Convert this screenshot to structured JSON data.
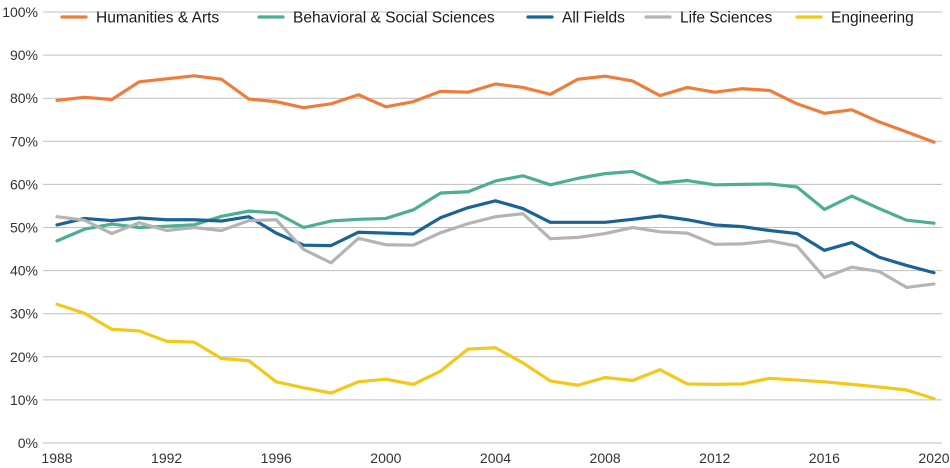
{
  "chart_data": {
    "type": "line",
    "title": "",
    "xlabel": "",
    "ylabel": "",
    "ylim": [
      0,
      100
    ],
    "xlim": [
      1988,
      2020
    ],
    "y_ticks": [
      {
        "value": 0,
        "label": "0%"
      },
      {
        "value": 10,
        "label": "10%"
      },
      {
        "value": 20,
        "label": "20%"
      },
      {
        "value": 30,
        "label": "30%"
      },
      {
        "value": 40,
        "label": "40%"
      },
      {
        "value": 50,
        "label": "50%"
      },
      {
        "value": 60,
        "label": "60%"
      },
      {
        "value": 70,
        "label": "70%"
      },
      {
        "value": 80,
        "label": "80%"
      },
      {
        "value": 90,
        "label": "90%"
      },
      {
        "value": 100,
        "label": "100%"
      }
    ],
    "x_ticks": [
      {
        "value": 1988,
        "label": "1988"
      },
      {
        "value": 1992,
        "label": "1992"
      },
      {
        "value": 1996,
        "label": "1996"
      },
      {
        "value": 2000,
        "label": "2000"
      },
      {
        "value": 2004,
        "label": "2004"
      },
      {
        "value": 2008,
        "label": "2008"
      },
      {
        "value": 2012,
        "label": "2012"
      },
      {
        "value": 2016,
        "label": "2016"
      },
      {
        "value": 2020,
        "label": "2020"
      }
    ],
    "legend_position": "top",
    "x": [
      1988,
      1989,
      1990,
      1991,
      1992,
      1993,
      1994,
      1995,
      1996,
      1997,
      1998,
      1999,
      2000,
      2001,
      2002,
      2003,
      2004,
      2005,
      2006,
      2007,
      2008,
      2009,
      2010,
      2011,
      2012,
      2013,
      2014,
      2015,
      2016,
      2017,
      2018,
      2019,
      2020
    ],
    "series": [
      {
        "name": "Humanities & Arts",
        "color": "#ee7d3b",
        "values": [
          79.5,
          80.2,
          79.7,
          83.8,
          84.5,
          85.2,
          84.4,
          79.8,
          79.2,
          77.8,
          78.7,
          80.8,
          78.0,
          79.2,
          81.6,
          81.4,
          83.3,
          82.5,
          80.9,
          84.4,
          85.1,
          84.0,
          80.6,
          82.5,
          81.4,
          82.2,
          81.8,
          78.7,
          76.5,
          77.3,
          74.5,
          72.2,
          69.8
        ]
      },
      {
        "name": "Behavioral & Social Sciences",
        "color": "#4cae94",
        "values": [
          46.9,
          49.6,
          50.8,
          50.0,
          50.3,
          50.6,
          52.6,
          53.8,
          53.4,
          50.0,
          51.5,
          51.9,
          52.1,
          54.1,
          58.0,
          58.3,
          60.8,
          62.0,
          59.9,
          61.4,
          62.5,
          63.0,
          60.3,
          60.9,
          59.9,
          60.0,
          60.1,
          59.4,
          54.2,
          57.3,
          54.4,
          51.7,
          51.0
        ]
      },
      {
        "name": "All Fields",
        "color": "#1b6393",
        "values": [
          50.6,
          52.1,
          51.6,
          52.2,
          51.8,
          51.8,
          51.5,
          52.5,
          48.7,
          45.9,
          45.8,
          48.9,
          48.7,
          48.5,
          52.3,
          54.6,
          56.2,
          54.4,
          51.2,
          51.2,
          51.2,
          51.9,
          52.7,
          51.8,
          50.6,
          50.2,
          49.3,
          48.6,
          44.7,
          46.5,
          43.1,
          41.2,
          39.5
        ]
      },
      {
        "name": "Life Sciences",
        "color": "#b4b4b4",
        "values": [
          52.5,
          51.7,
          48.6,
          51.1,
          49.3,
          50.0,
          49.3,
          51.6,
          51.8,
          44.9,
          41.8,
          47.5,
          46.0,
          45.9,
          48.8,
          50.9,
          52.5,
          53.2,
          47.4,
          47.7,
          48.6,
          50.0,
          49.0,
          48.7,
          46.1,
          46.2,
          46.9,
          45.7,
          38.4,
          40.8,
          39.8,
          36.1,
          36.9
        ]
      },
      {
        "name": "Engineering",
        "color": "#f3c919",
        "values": [
          32.2,
          30.1,
          26.4,
          26.0,
          23.6,
          23.4,
          19.6,
          19.1,
          14.2,
          12.8,
          11.6,
          14.2,
          14.8,
          13.6,
          16.7,
          21.8,
          22.1,
          18.6,
          14.4,
          13.4,
          15.2,
          14.5,
          17.0,
          13.7,
          13.6,
          13.7,
          15.0,
          14.6,
          14.2,
          13.6,
          13.0,
          12.3,
          10.3
        ]
      }
    ]
  }
}
